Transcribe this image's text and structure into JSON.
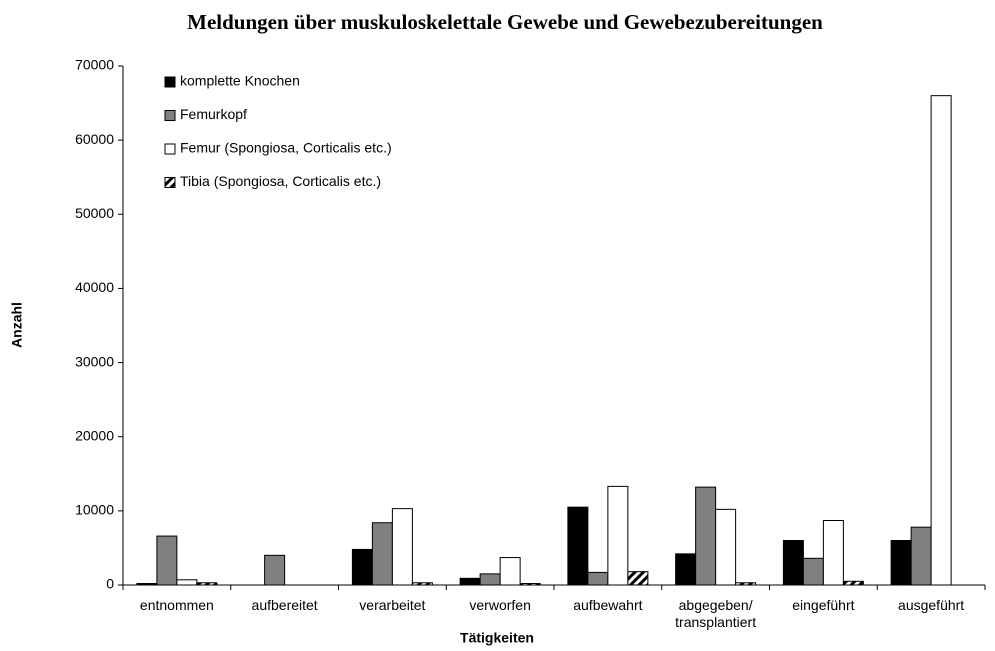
{
  "chart_data": {
    "type": "bar",
    "title": "Meldungen über muskuloskelettale Gewebe und Gewebezubereitungen",
    "x_label": "Tätigkeiten",
    "y_label": "Anzahl",
    "categories": [
      "entnommen",
      "aufbereitet",
      "verarbeitet",
      "verworfen",
      "aufbewahrt",
      "abgegeben/\ntransplantiert",
      "eingeführt",
      "ausgeführt"
    ],
    "series": [
      {
        "name": "komplette Knochen",
        "color": "#000000",
        "values": [
          200,
          0,
          4800,
          900,
          10500,
          4200,
          6000,
          6000
        ]
      },
      {
        "name": "Femurkopf",
        "color": "#808080",
        "values": [
          6600,
          4000,
          8400,
          1500,
          1700,
          13200,
          3600,
          7800
        ]
      },
      {
        "name": "Femur (Spongiosa, Corticalis etc.)",
        "color": "#ffffff",
        "values": [
          700,
          0,
          10300,
          3700,
          13300,
          10200,
          8700,
          66000
        ]
      },
      {
        "name": "Tibia (Spongiosa, Corticalis etc.)",
        "color": "#000000",
        "pattern": "hatch",
        "values": [
          300,
          0,
          300,
          200,
          1800,
          300,
          500,
          0
        ]
      }
    ],
    "ylim": [
      0,
      70000
    ],
    "yticks": [
      0,
      10000,
      20000,
      30000,
      40000,
      50000,
      60000,
      70000
    ],
    "legend": "upper left"
  }
}
